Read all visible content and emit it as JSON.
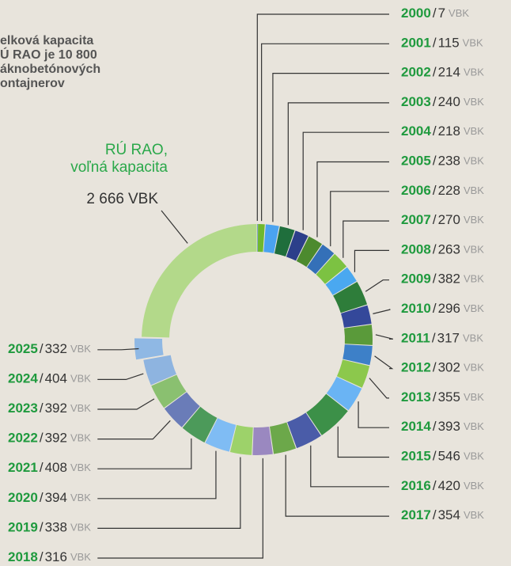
{
  "chart_data": {
    "type": "donut",
    "title_lines": [
      "elková kapacita",
      "Ú RAO je 10 800",
      "áknobetónových",
      "ontajnerov"
    ],
    "unit": "VBK",
    "separator": "/",
    "categories": [
      "2000",
      "2001",
      "2002",
      "2003",
      "2004",
      "2005",
      "2006",
      "2007",
      "2008",
      "2009",
      "2010",
      "2011",
      "2012",
      "2013",
      "2014",
      "2015",
      "2016",
      "2017",
      "2018",
      "2019",
      "2020",
      "2021",
      "2022",
      "2023",
      "2024",
      "2025"
    ],
    "values": [
      7,
      115,
      214,
      240,
      218,
      238,
      228,
      270,
      263,
      382,
      296,
      317,
      302,
      355,
      393,
      546,
      420,
      354,
      316,
      338,
      394,
      408,
      392,
      392,
      404,
      332
    ],
    "colors": [
      "#2f6fb8",
      "#6fb82e",
      "#4aa3f0",
      "#1f6e3c",
      "#2c3f8a",
      "#4c8a2e",
      "#3470b8",
      "#7cc242",
      "#4aa8f0",
      "#2e7d3a",
      "#34489a",
      "#5a9a3a",
      "#3d80c8",
      "#8cc84c",
      "#6ab4f4",
      "#3c9048",
      "#4a5ca8",
      "#6ca84a",
      "#9a88c0",
      "#9dd26a",
      "#7fbcf4",
      "#4c9a5a",
      "#6a7cb8",
      "#8ac070",
      "#8eb4e0",
      "#8fb8e4"
    ],
    "exploded": "2025",
    "free_capacity": {
      "label": [
        "RÚ RAO,",
        "voľná kapacita"
      ],
      "value": 2666,
      "value_label": "2 666",
      "color": "#b3d98a"
    }
  }
}
